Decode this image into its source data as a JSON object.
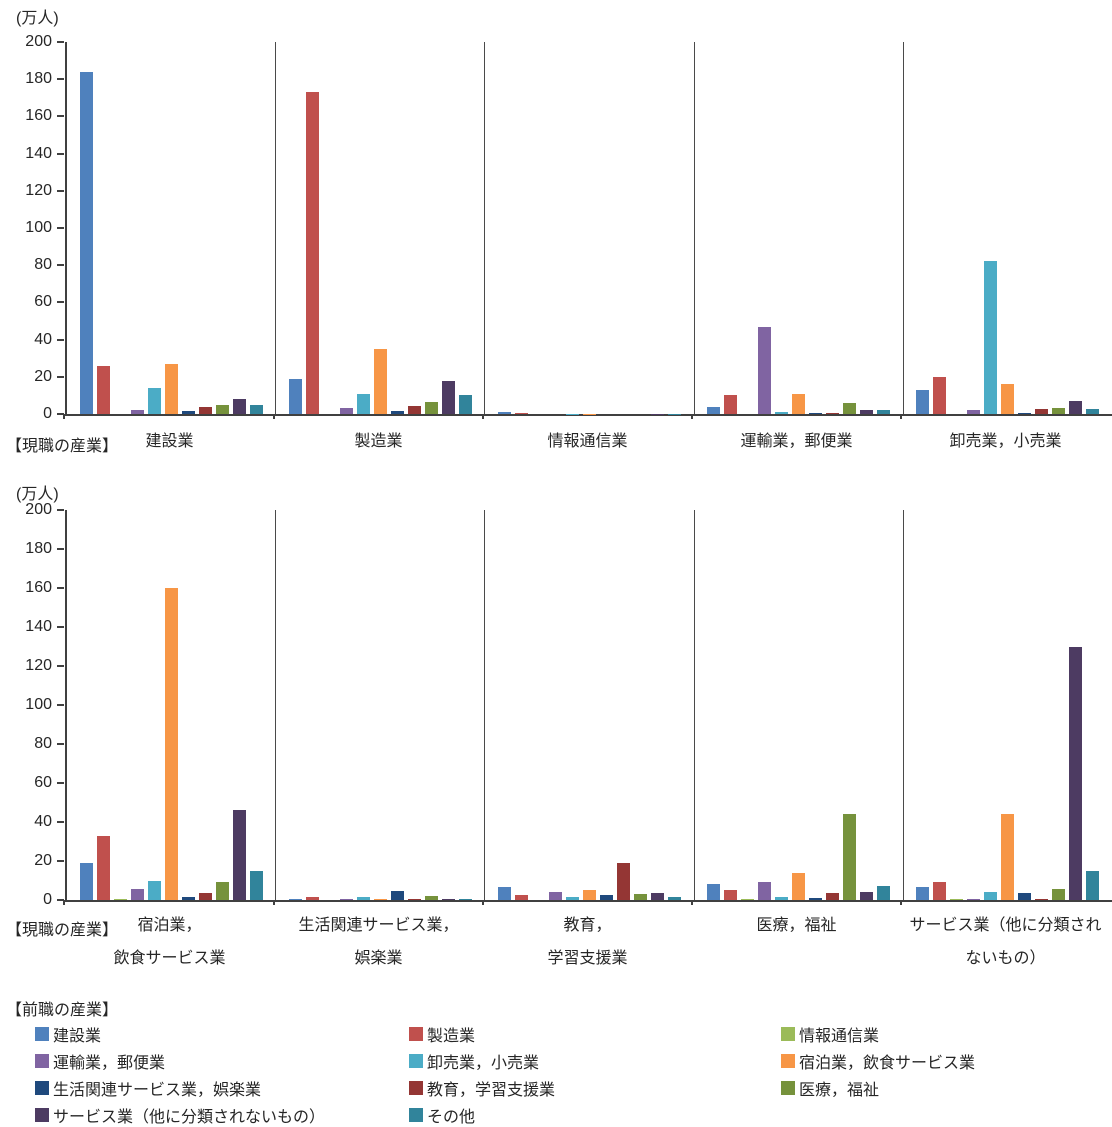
{
  "chart_data": {
    "type": "bar",
    "title": "",
    "unit_label": "(万人)",
    "legend_title": "【前職の産業】",
    "ylim": [
      0,
      200
    ],
    "ytick_step": 20,
    "grid": false,
    "legend_position": "bottom",
    "series": [
      {
        "name": "建設業",
        "color": "#4F81BD"
      },
      {
        "name": "製造業",
        "color": "#C0504D"
      },
      {
        "name": "情報通信業",
        "color": "#9BBB59"
      },
      {
        "name": "運輸業，郵便業",
        "color": "#8064A2"
      },
      {
        "name": "卸売業，小売業",
        "color": "#4BACC6"
      },
      {
        "name": "宿泊業，飲食サービス業",
        "color": "#F79646"
      },
      {
        "name": "生活関連サービス業，娯楽業",
        "color": "#1F497D"
      },
      {
        "name": "教育，学習支援業",
        "color": "#943634"
      },
      {
        "name": "医療，福祉",
        "color": "#76923C"
      },
      {
        "name": "サービス業（他に分類されないもの）",
        "color": "#4D3B62"
      },
      {
        "name": "その他",
        "color": "#31849B"
      }
    ],
    "panels": [
      {
        "axis_prefix": "【現職の産業】",
        "groups": [
          {
            "label_lines": [
              "建設業"
            ],
            "values": [
              184,
              26,
              0,
              2,
              14,
              27,
              1.5,
              4,
              5,
              8,
              5
            ]
          },
          {
            "label_lines": [
              "製造業"
            ],
            "values": [
              19,
              173,
              0,
              3,
              11,
              35,
              1.5,
              4.5,
              6.5,
              18,
              10
            ]
          },
          {
            "label_lines": [
              "情報通信業"
            ],
            "values": [
              1,
              0.4,
              0,
              0,
              0.2,
              0.2,
              0,
              0,
              0,
              0.2,
              0.2
            ]
          },
          {
            "label_lines": [
              "運輸業，郵便業"
            ],
            "values": [
              4,
              10,
              0,
              47,
              1,
              11,
              0.3,
              0.7,
              6,
              2,
              2
            ]
          },
          {
            "label_lines": [
              "卸売業，小売業"
            ],
            "values": [
              13,
              20,
              0,
              2,
              82,
              16,
              0.5,
              2.5,
              3,
              7,
              2.5
            ]
          }
        ]
      },
      {
        "axis_prefix": "【現職の産業】",
        "groups": [
          {
            "label_lines": [
              "宿泊業，",
              "飲食サービス業"
            ],
            "values": [
              19,
              33,
              0.5,
              5.5,
              9.5,
              160,
              1.5,
              3.5,
              9,
              46,
              15
            ]
          },
          {
            "label_lines": [
              "生活関連サービス業，",
              "娯楽業"
            ],
            "values": [
              0.3,
              1.5,
              0,
              0.5,
              1.5,
              0.3,
              4.5,
              0.3,
              2,
              0.7,
              0.3
            ]
          },
          {
            "label_lines": [
              "教育，",
              "学習支援業"
            ],
            "values": [
              6.5,
              2.5,
              0,
              4,
              1.5,
              5,
              2.5,
              19,
              3,
              3.5,
              1.5
            ]
          },
          {
            "label_lines": [
              "医療，福祉"
            ],
            "values": [
              8,
              5,
              0.3,
              9,
              1.5,
              14,
              1,
              3.5,
              44,
              4,
              7
            ]
          },
          {
            "label_lines": [
              "サービス業（他に分類され",
              "ないもの）"
            ],
            "values": [
              6.5,
              9,
              0.3,
              0.5,
              4,
              44,
              3.5,
              0.7,
              5.5,
              130,
              15
            ]
          }
        ]
      }
    ]
  }
}
